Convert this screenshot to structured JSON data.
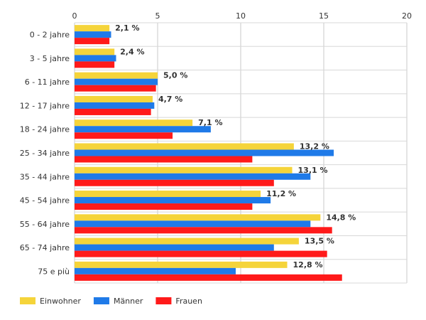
{
  "chart_data": {
    "type": "bar",
    "orientation": "horizontal",
    "categories": [
      "0 - 2 jahre",
      "3 - 5 jahre",
      "6 - 11 jahre",
      "12 - 17 jahre",
      "18 - 24 jahre",
      "25 - 34 jahre",
      "35 - 44 jahre",
      "45 - 54 jahre",
      "55 - 64 jahre",
      "65 - 74 jahre",
      "75 e più"
    ],
    "series": [
      {
        "name": "Einwohner",
        "color": "#f5d43a",
        "values": [
          2.1,
          2.4,
          5.0,
          4.7,
          7.1,
          13.2,
          13.1,
          11.2,
          14.8,
          13.5,
          12.8
        ]
      },
      {
        "name": "Männer",
        "color": "#1f7ae8",
        "values": [
          2.2,
          2.5,
          5.0,
          4.8,
          8.2,
          15.6,
          14.2,
          11.8,
          14.2,
          12.0,
          9.7
        ]
      },
      {
        "name": "Frauen",
        "color": "#ff1a1a",
        "values": [
          2.1,
          2.4,
          4.9,
          4.6,
          5.9,
          10.7,
          12.0,
          10.7,
          15.5,
          15.2,
          16.1
        ]
      }
    ],
    "data_labels": [
      "2,1 %",
      "2,4 %",
      "5,0 %",
      "4,7 %",
      "7,1 %",
      "13,2 %",
      "13,1 %",
      "11,2 %",
      "14,8 %",
      "13,5 %",
      "12,8 %"
    ],
    "xlim": [
      0,
      20
    ],
    "x_ticks": [
      0,
      5,
      10,
      15,
      20
    ],
    "x_axis_position": "top",
    "grid": true,
    "legend_position": "bottom-left",
    "title": "",
    "xlabel": "",
    "ylabel": ""
  }
}
